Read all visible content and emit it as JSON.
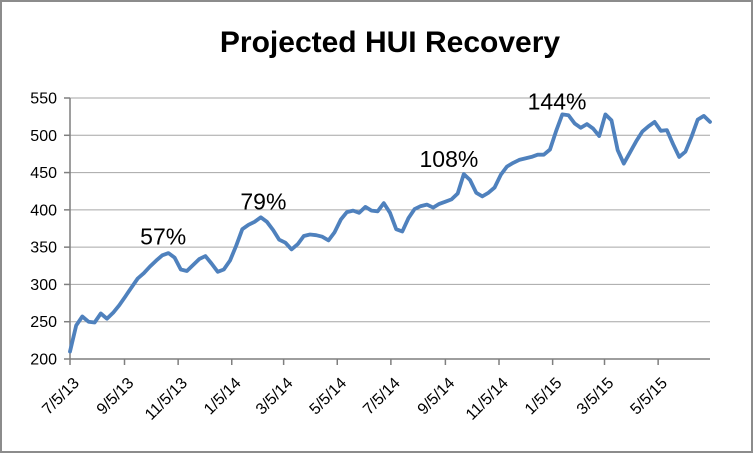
{
  "chart": {
    "title": "Projected HUI Recovery",
    "colors": {
      "line": "#4F81BD",
      "gridline": "#A6A6A6",
      "axis": "#7F7F7F",
      "border": "#8C8C8C",
      "background": "#FFFFFF",
      "text": "#000000"
    }
  },
  "chart_data": {
    "type": "line",
    "title": "Projected HUI Recovery",
    "xlabel": "",
    "ylabel": "",
    "ylim": [
      200,
      550
    ],
    "y_ticks": [
      200,
      250,
      300,
      350,
      400,
      450,
      500,
      550
    ],
    "x_tick_labels": [
      "7/5/13",
      "9/5/13",
      "11/5/13",
      "1/5/14",
      "3/5/14",
      "5/5/14",
      "7/5/14",
      "9/5/14",
      "11/5/14",
      "1/5/15",
      "3/5/15",
      "5/5/15"
    ],
    "x_tick_days": [
      0,
      62,
      123,
      184,
      243,
      304,
      365,
      427,
      488,
      549,
      608,
      669
    ],
    "x_range_days": [
      0,
      728
    ],
    "grid": "horizontal",
    "legend_position": "none",
    "series": [
      {
        "name": "Projected HUI",
        "start_date": "7/5/13",
        "interval_days": 7,
        "values": [
          210,
          245,
          257,
          250,
          249,
          261,
          254,
          262,
          272,
          284,
          296,
          308,
          315,
          324,
          332,
          339,
          342,
          336,
          320,
          318,
          326,
          334,
          338,
          328,
          317,
          320,
          332,
          352,
          374,
          380,
          384,
          390,
          384,
          373,
          360,
          356,
          347,
          354,
          365,
          367,
          366,
          364,
          359,
          370,
          387,
          397,
          399,
          396,
          404,
          399,
          398,
          409,
          396,
          374,
          371,
          389,
          401,
          405,
          407,
          403,
          408,
          411,
          414,
          422,
          448,
          440,
          423,
          418,
          423,
          430,
          447,
          458,
          463,
          467,
          469,
          471,
          474,
          474,
          481,
          506,
          528,
          527,
          516,
          510,
          515,
          509,
          499,
          528,
          520,
          480,
          462,
          477,
          492,
          505,
          512,
          518,
          506,
          507,
          488,
          471,
          478,
          498,
          521,
          526,
          518
        ]
      }
    ],
    "annotations": [
      {
        "label": "57%",
        "day": 106,
        "value": 364
      },
      {
        "label": "79%",
        "day": 220,
        "value": 411
      },
      {
        "label": "108%",
        "day": 431,
        "value": 468
      },
      {
        "label": "144%",
        "day": 554,
        "value": 545
      }
    ]
  }
}
